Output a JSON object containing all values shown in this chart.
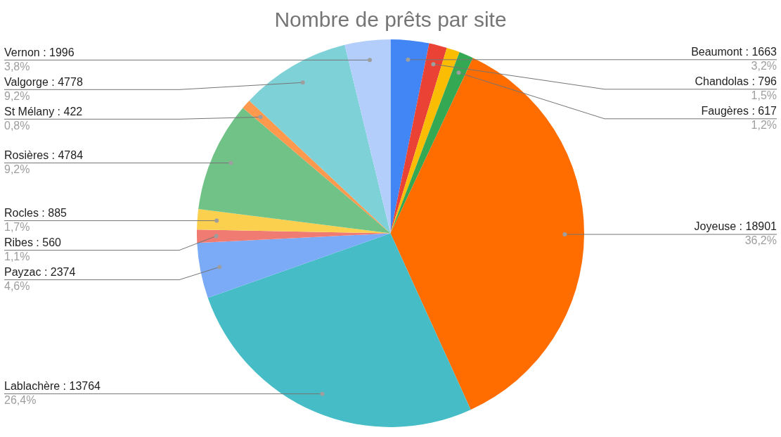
{
  "chart_data": {
    "type": "pie",
    "title": "Nombre de prêts par site",
    "categories": [
      "Beaumont : 1663",
      "Chandolas : 796",
      null,
      "Faugères : 617",
      "Joyeuse : 18901",
      "Lablachère : 13764",
      "Payzac : 2374",
      "Ribes : 560",
      "Rocles : 885",
      "Rosières : 4784",
      "St Mélany : 422",
      "Valgorge : 4778",
      "Vernon : 1996"
    ],
    "values": [
      3.2,
      1.5,
      1.1,
      1.2,
      36.2,
      26.4,
      4.6,
      1.1,
      1.7,
      9.2,
      0.8,
      9.2,
      3.8
    ],
    "colors": [
      "#4285f4",
      "#ea4335",
      "#fbbc04",
      "#34a853",
      "#ff6d01",
      "#46bdc6",
      "#7baaf7",
      "#f07b72",
      "#fcd04f",
      "#71c287",
      "#ff994d",
      "#7ed1d7",
      "#b3cefb"
    ],
    "value_labels": [
      "3,2%",
      "1,5%",
      null,
      "1,2%",
      "36,2%",
      "26,4%",
      "4,6%",
      "1,1%",
      "1,7%",
      "9,2%",
      "0,8%",
      "9,2%",
      "3,8%"
    ]
  }
}
